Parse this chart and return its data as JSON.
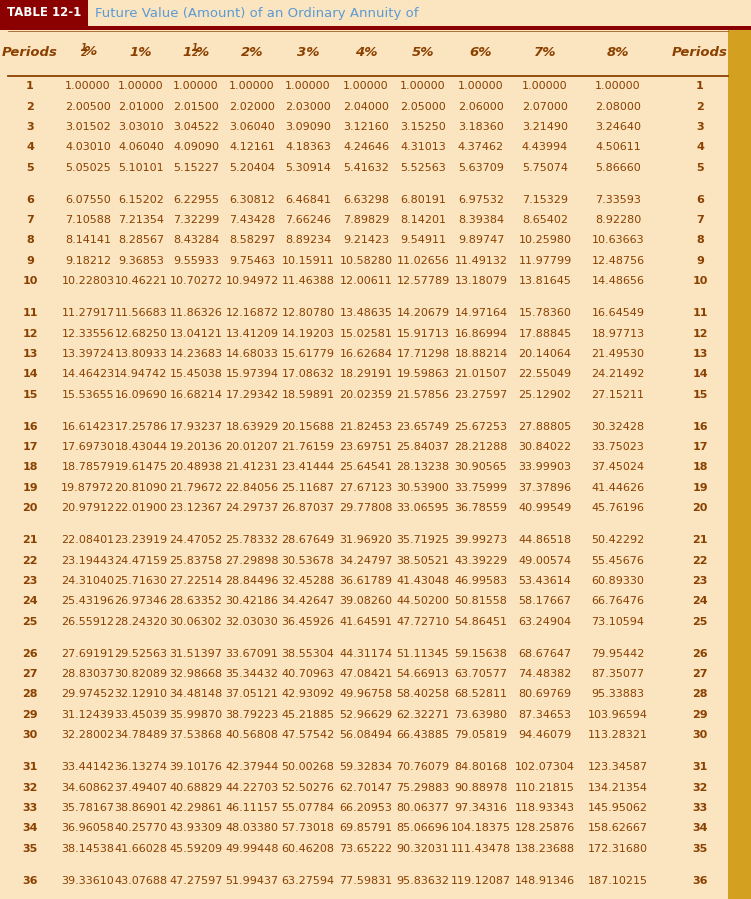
{
  "title_box_text": "TABLE 12-1",
  "title_text": "Future Value (Amount) of an Ordinary Annuity of",
  "title_box_bg": "#8B0000",
  "title_text_color_box": "#FFFFFF",
  "title_text_color": "#5B9BD5",
  "table_bg": "#FAE5C0",
  "right_bar_color": "#D4A020",
  "data_color": "#8B4000",
  "header_color": "#8B4000",
  "separator_color": "#8B4000",
  "col_headers": [
    "Periods",
    "1/2%",
    "1%",
    "1_1/2%",
    "2%",
    "3%",
    "4%",
    "5%",
    "6%",
    "7%",
    "8%",
    "Periods"
  ],
  "rows": [
    [
      1,
      "1.00000",
      "1.00000",
      "1.00000",
      "1.00000",
      "1.00000",
      "1.00000",
      "1.00000",
      "1.00000",
      "1.00000",
      "1.00000",
      1
    ],
    [
      2,
      "2.00500",
      "2.01000",
      "2.01500",
      "2.02000",
      "2.03000",
      "2.04000",
      "2.05000",
      "2.06000",
      "2.07000",
      "2.08000",
      2
    ],
    [
      3,
      "3.01502",
      "3.03010",
      "3.04522",
      "3.06040",
      "3.09090",
      "3.12160",
      "3.15250",
      "3.18360",
      "3.21490",
      "3.24640",
      3
    ],
    [
      4,
      "4.03010",
      "4.06040",
      "4.09090",
      "4.12161",
      "4.18363",
      "4.24646",
      "4.31013",
      "4.37462",
      "4.43994",
      "4.50611",
      4
    ],
    [
      5,
      "5.05025",
      "5.10101",
      "5.15227",
      "5.20404",
      "5.30914",
      "5.41632",
      "5.52563",
      "5.63709",
      "5.75074",
      "5.86660",
      5
    ],
    [
      6,
      "6.07550",
      "6.15202",
      "6.22955",
      "6.30812",
      "6.46841",
      "6.63298",
      "6.80191",
      "6.97532",
      "7.15329",
      "7.33593",
      6
    ],
    [
      7,
      "7.10588",
      "7.21354",
      "7.32299",
      "7.43428",
      "7.66246",
      "7.89829",
      "8.14201",
      "8.39384",
      "8.65402",
      "8.92280",
      7
    ],
    [
      8,
      "8.14141",
      "8.28567",
      "8.43284",
      "8.58297",
      "8.89234",
      "9.21423",
      "9.54911",
      "9.89747",
      "10.25980",
      "10.63663",
      8
    ],
    [
      9,
      "9.18212",
      "9.36853",
      "9.55933",
      "9.75463",
      "10.15911",
      "10.58280",
      "11.02656",
      "11.49132",
      "11.97799",
      "12.48756",
      9
    ],
    [
      10,
      "10.22803",
      "10.46221",
      "10.70272",
      "10.94972",
      "11.46388",
      "12.00611",
      "12.57789",
      "13.18079",
      "13.81645",
      "14.48656",
      10
    ],
    [
      11,
      "11.27917",
      "11.56683",
      "11.86326",
      "12.16872",
      "12.80780",
      "13.48635",
      "14.20679",
      "14.97164",
      "15.78360",
      "16.64549",
      11
    ],
    [
      12,
      "12.33556",
      "12.68250",
      "13.04121",
      "13.41209",
      "14.19203",
      "15.02581",
      "15.91713",
      "16.86994",
      "17.88845",
      "18.97713",
      12
    ],
    [
      13,
      "13.39724",
      "13.80933",
      "14.23683",
      "14.68033",
      "15.61779",
      "16.62684",
      "17.71298",
      "18.88214",
      "20.14064",
      "21.49530",
      13
    ],
    [
      14,
      "14.46423",
      "14.94742",
      "15.45038",
      "15.97394",
      "17.08632",
      "18.29191",
      "19.59863",
      "21.01507",
      "22.55049",
      "24.21492",
      14
    ],
    [
      15,
      "15.53655",
      "16.09690",
      "16.68214",
      "17.29342",
      "18.59891",
      "20.02359",
      "21.57856",
      "23.27597",
      "25.12902",
      "27.15211",
      15
    ],
    [
      16,
      "16.61423",
      "17.25786",
      "17.93237",
      "18.63929",
      "20.15688",
      "21.82453",
      "23.65749",
      "25.67253",
      "27.88805",
      "30.32428",
      16
    ],
    [
      17,
      "17.69730",
      "18.43044",
      "19.20136",
      "20.01207",
      "21.76159",
      "23.69751",
      "25.84037",
      "28.21288",
      "30.84022",
      "33.75023",
      17
    ],
    [
      18,
      "18.78579",
      "19.61475",
      "20.48938",
      "21.41231",
      "23.41444",
      "25.64541",
      "28.13238",
      "30.90565",
      "33.99903",
      "37.45024",
      18
    ],
    [
      19,
      "19.87972",
      "20.81090",
      "21.79672",
      "22.84056",
      "25.11687",
      "27.67123",
      "30.53900",
      "33.75999",
      "37.37896",
      "41.44626",
      19
    ],
    [
      20,
      "20.97912",
      "22.01900",
      "23.12367",
      "24.29737",
      "26.87037",
      "29.77808",
      "33.06595",
      "36.78559",
      "40.99549",
      "45.76196",
      20
    ],
    [
      21,
      "22.08401",
      "23.23919",
      "24.47052",
      "25.78332",
      "28.67649",
      "31.96920",
      "35.71925",
      "39.99273",
      "44.86518",
      "50.42292",
      21
    ],
    [
      22,
      "23.19443",
      "24.47159",
      "25.83758",
      "27.29898",
      "30.53678",
      "34.24797",
      "38.50521",
      "43.39229",
      "49.00574",
      "55.45676",
      22
    ],
    [
      23,
      "24.31040",
      "25.71630",
      "27.22514",
      "28.84496",
      "32.45288",
      "36.61789",
      "41.43048",
      "46.99583",
      "53.43614",
      "60.89330",
      23
    ],
    [
      24,
      "25.43196",
      "26.97346",
      "28.63352",
      "30.42186",
      "34.42647",
      "39.08260",
      "44.50200",
      "50.81558",
      "58.17667",
      "66.76476",
      24
    ],
    [
      25,
      "26.55912",
      "28.24320",
      "30.06302",
      "32.03030",
      "36.45926",
      "41.64591",
      "47.72710",
      "54.86451",
      "63.24904",
      "73.10594",
      25
    ],
    [
      26,
      "27.69191",
      "29.52563",
      "31.51397",
      "33.67091",
      "38.55304",
      "44.31174",
      "51.11345",
      "59.15638",
      "68.67647",
      "79.95442",
      26
    ],
    [
      27,
      "28.83037",
      "30.82089",
      "32.98668",
      "35.34432",
      "40.70963",
      "47.08421",
      "54.66913",
      "63.70577",
      "74.48382",
      "87.35077",
      27
    ],
    [
      28,
      "29.97452",
      "32.12910",
      "34.48148",
      "37.05121",
      "42.93092",
      "49.96758",
      "58.40258",
      "68.52811",
      "80.69769",
      "95.33883",
      28
    ],
    [
      29,
      "31.12439",
      "33.45039",
      "35.99870",
      "38.79223",
      "45.21885",
      "52.96629",
      "62.32271",
      "73.63980",
      "87.34653",
      "103.96594",
      29
    ],
    [
      30,
      "32.28002",
      "34.78489",
      "37.53868",
      "40.56808",
      "47.57542",
      "56.08494",
      "66.43885",
      "79.05819",
      "94.46079",
      "113.28321",
      30
    ],
    [
      31,
      "33.44142",
      "36.13274",
      "39.10176",
      "42.37944",
      "50.00268",
      "59.32834",
      "70.76079",
      "84.80168",
      "102.07304",
      "123.34587",
      31
    ],
    [
      32,
      "34.60862",
      "37.49407",
      "40.68829",
      "44.22703",
      "52.50276",
      "62.70147",
      "75.29883",
      "90.88978",
      "110.21815",
      "134.21354",
      32
    ],
    [
      33,
      "35.78167",
      "38.86901",
      "42.29861",
      "46.11157",
      "55.07784",
      "66.20953",
      "80.06377",
      "97.34316",
      "118.93343",
      "145.95062",
      33
    ],
    [
      34,
      "36.96058",
      "40.25770",
      "43.93309",
      "48.03380",
      "57.73018",
      "69.85791",
      "85.06696",
      "104.18375",
      "128.25876",
      "158.62667",
      34
    ],
    [
      35,
      "38.14538",
      "41.66028",
      "45.59209",
      "49.99448",
      "60.46208",
      "73.65222",
      "90.32031",
      "111.43478",
      "138.23688",
      "172.31680",
      35
    ],
    [
      36,
      "39.33610",
      "43.07688",
      "47.27597",
      "51.99437",
      "63.27594",
      "77.59831",
      "95.83632",
      "119.12087",
      "148.91346",
      "187.10215",
      36
    ]
  ],
  "group_breaks": [
    5,
    10,
    15,
    20,
    25,
    30,
    35
  ],
  "figsize": [
    7.51,
    8.99
  ],
  "dpi": 100
}
